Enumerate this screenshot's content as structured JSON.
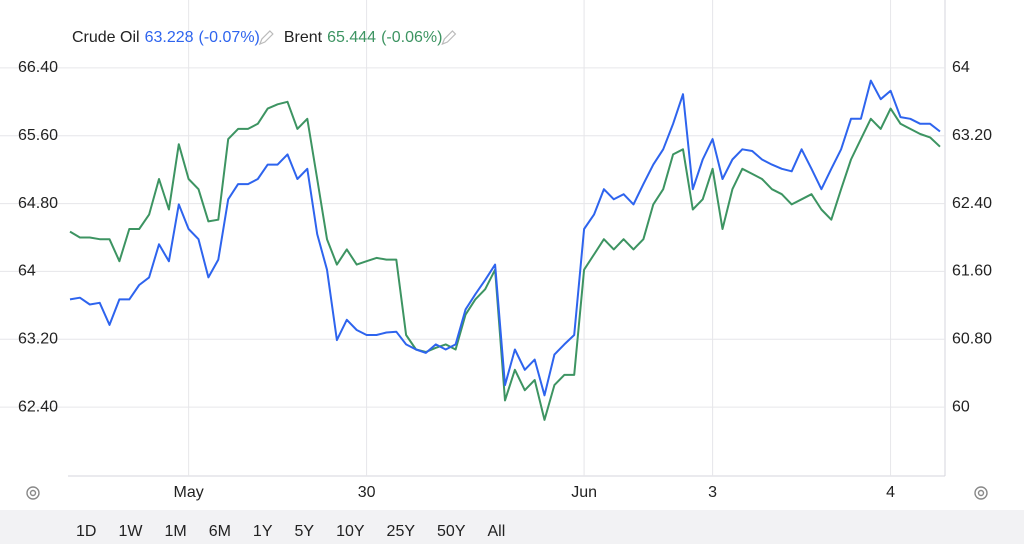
{
  "chart_data": {
    "type": "line",
    "categories": [
      null,
      null,
      null,
      null,
      null,
      null,
      null,
      null,
      null,
      null,
      null,
      null,
      "May",
      null,
      null,
      null,
      null,
      null,
      null,
      null,
      null,
      null,
      null,
      null,
      null,
      null,
      null,
      null,
      null,
      null,
      "30",
      null,
      null,
      null,
      null,
      null,
      null,
      null,
      null,
      null,
      null,
      null,
      null,
      null,
      null,
      null,
      null,
      null,
      null,
      null,
      null,
      null,
      "Jun",
      null,
      null,
      null,
      null,
      null,
      null,
      null,
      null,
      null,
      null,
      null,
      null,
      "3",
      null,
      null,
      null,
      null,
      null,
      null,
      null,
      null,
      null,
      null,
      null,
      null,
      null,
      null,
      null,
      null,
      null,
      "4",
      null,
      null,
      null,
      null,
      null
    ],
    "series": [
      {
        "name": "Crude Oil",
        "last_value": 63.228,
        "change": "(-0.07%)",
        "color": "#2e64ee",
        "axis": "y2",
        "values": [
          61.27,
          61.29,
          61.21,
          61.23,
          60.97,
          61.27,
          61.27,
          61.44,
          61.53,
          61.92,
          61.72,
          62.39,
          62.1,
          61.98,
          61.53,
          61.74,
          62.45,
          62.63,
          62.63,
          62.69,
          62.86,
          62.86,
          62.98,
          62.69,
          62.81,
          62.04,
          61.62,
          60.79,
          61.03,
          60.91,
          60.85,
          60.85,
          60.88,
          60.89,
          60.74,
          60.68,
          60.64,
          60.74,
          60.68,
          60.74,
          61.15,
          61.33,
          61.5,
          61.68,
          60.26,
          60.68,
          60.44,
          60.56,
          60.14,
          60.62,
          60.74,
          60.85,
          62.1,
          62.27,
          62.57,
          62.45,
          62.51,
          62.39,
          62.63,
          62.86,
          63.04,
          63.34,
          63.69,
          62.57,
          62.92,
          63.16,
          62.69,
          62.92,
          63.04,
          63.02,
          62.92,
          62.86,
          62.81,
          62.78,
          63.04,
          62.81,
          62.57,
          62.81,
          63.04,
          63.4,
          63.4,
          63.85,
          63.63,
          63.73,
          63.42,
          63.4,
          63.34,
          63.34,
          63.25
        ]
      },
      {
        "name": "Brent",
        "last_value": 65.444,
        "change": "(-0.06%)",
        "color": "#3d9462",
        "values": [
          64.47,
          64.4,
          64.4,
          64.38,
          64.38,
          64.12,
          64.5,
          64.5,
          64.67,
          65.09,
          64.73,
          65.5,
          65.09,
          64.97,
          64.59,
          64.61,
          65.56,
          65.68,
          65.68,
          65.74,
          65.92,
          65.97,
          66.0,
          65.68,
          65.8,
          65.09,
          64.38,
          64.08,
          64.26,
          64.08,
          64.12,
          64.16,
          64.14,
          64.14,
          63.25,
          63.08,
          63.05,
          63.1,
          63.14,
          63.08,
          63.49,
          63.67,
          63.79,
          64.02,
          62.48,
          62.84,
          62.6,
          62.72,
          62.25,
          62.66,
          62.78,
          62.78,
          64.02,
          64.2,
          64.38,
          64.26,
          64.38,
          64.26,
          64.38,
          64.79,
          64.97,
          65.38,
          65.44,
          64.73,
          64.85,
          65.21,
          64.5,
          64.97,
          65.21,
          65.15,
          65.09,
          64.97,
          64.91,
          64.79,
          64.85,
          64.91,
          64.73,
          64.61,
          64.97,
          65.32,
          65.56,
          65.8,
          65.68,
          65.92,
          65.74,
          65.68,
          65.62,
          65.58,
          65.47
        ]
      }
    ],
    "ylim": [
      61.6,
      67.2
    ],
    "yticks": [
      {
        "value": 62.4,
        "label": "62.40"
      },
      {
        "value": 63.2,
        "label": "63.20"
      },
      64,
      {
        "value": 64.8,
        "label": "64.80"
      },
      {
        "value": 65.6,
        "label": "65.60"
      },
      {
        "value": 66.4,
        "label": "66.40"
      }
    ],
    "y2lim": [
      59.2,
      64.8
    ],
    "y2ticks": [
      60,
      {
        "value": 60.8,
        "label": "60.80"
      },
      {
        "value": 61.6,
        "label": "61.60"
      },
      {
        "value": 62.4,
        "label": "62.40"
      },
      {
        "value": 63.2,
        "label": "63.20"
      },
      64
    ],
    "grid": true,
    "range_buttons": [
      "1D",
      "1W",
      "1M",
      "6M",
      "1Y",
      "5Y",
      "10Y",
      "25Y",
      "50Y",
      "All"
    ],
    "active_range": "1W"
  }
}
